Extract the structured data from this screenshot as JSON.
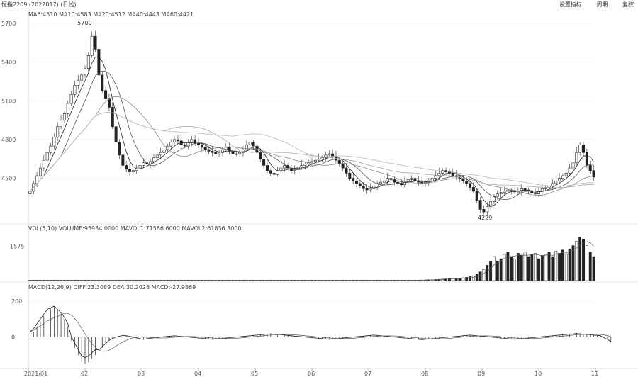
{
  "header": {
    "symbol_title": "恒指2209 (2022017) (日线)",
    "buttons": [
      "设置指标",
      "周期",
      "复权"
    ]
  },
  "panels": {
    "ma_legend": "MA5:4510  MA10:4583  MA20:4512  MA40:4443  MA60:4421",
    "vol_legend": "VOL(5,10)  VOLUME:95934.0000  MAVOL1:71586.6000  MAVOL2:61836.3000",
    "macd_legend": "MACD(12,26,9)  DIFF:23.3089  DEA:30.2028  MACD:-27.9869"
  },
  "chart_data": [
    {
      "type": "candlestick",
      "y_ticks": [
        4500,
        4800,
        5100,
        5400,
        5700
      ],
      "ylim": [
        4180,
        5760
      ],
      "annotations": [
        {
          "label": "5700",
          "kind": "high"
        },
        {
          "label": "4229",
          "kind": "low"
        }
      ],
      "x_ticks": [
        "2021/01",
        "02",
        "03",
        "04",
        "05",
        "06",
        "07",
        "08",
        "09",
        "10",
        "11"
      ],
      "close_series": [
        4400,
        4460,
        4520,
        4580,
        4640,
        4700,
        4750,
        4820,
        4900,
        4950,
        5000,
        5080,
        5150,
        5220,
        5260,
        5300,
        5350,
        5450,
        5600,
        5500,
        5300,
        5180,
        5120,
        5050,
        4900,
        4780,
        4680,
        4600,
        4570,
        4550,
        4560,
        4580,
        4600,
        4620,
        4610,
        4630,
        4660,
        4680,
        4700,
        4720,
        4750,
        4780,
        4800,
        4790,
        4760,
        4750,
        4780,
        4800,
        4770,
        4760,
        4740,
        4720,
        4710,
        4700,
        4690,
        4700,
        4720,
        4740,
        4710,
        4690,
        4690,
        4700,
        4720,
        4760,
        4780,
        4750,
        4700,
        4650,
        4600,
        4560,
        4540,
        4530,
        4560,
        4580,
        4600,
        4580,
        4560,
        4570,
        4590,
        4600,
        4610,
        4620,
        4630,
        4640,
        4650,
        4660,
        4680,
        4690,
        4670,
        4640,
        4610,
        4580,
        4540,
        4500,
        4480,
        4460,
        4440,
        4420,
        4410,
        4420,
        4440,
        4460,
        4470,
        4480,
        4500,
        4490,
        4470,
        4460,
        4450,
        4470,
        4490,
        4500,
        4480,
        4470,
        4460,
        4470,
        4480,
        4500,
        4520,
        4540,
        4560,
        4550,
        4540,
        4520,
        4510,
        4500,
        4480,
        4460,
        4430,
        4400,
        4330,
        4260,
        4240,
        4280,
        4320,
        4360,
        4380,
        4390,
        4400,
        4410,
        4405,
        4395,
        4400,
        4420,
        4410,
        4400,
        4390,
        4380,
        4400,
        4420,
        4430,
        4440,
        4460,
        4480,
        4500,
        4520,
        4540,
        4580,
        4620,
        4700,
        4760,
        4700,
        4600,
        4560,
        4510
      ]
    },
    {
      "type": "bar",
      "title": "VOL",
      "y_ticks": [
        1575
      ],
      "ylim": [
        0,
        2200
      ],
      "values": [
        20,
        20,
        20,
        20,
        20,
        20,
        20,
        20,
        20,
        20,
        20,
        20,
        20,
        20,
        20,
        20,
        20,
        20,
        20,
        20,
        20,
        20,
        20,
        20,
        20,
        20,
        20,
        20,
        20,
        20,
        20,
        20,
        20,
        20,
        20,
        20,
        20,
        20,
        20,
        20,
        20,
        20,
        20,
        20,
        20,
        20,
        20,
        20,
        20,
        20,
        20,
        20,
        20,
        20,
        20,
        20,
        20,
        20,
        20,
        20,
        20,
        20,
        20,
        20,
        20,
        20,
        20,
        20,
        20,
        20,
        20,
        20,
        20,
        20,
        20,
        20,
        20,
        20,
        20,
        20,
        20,
        20,
        20,
        20,
        20,
        20,
        20,
        20,
        20,
        20,
        20,
        20,
        20,
        20,
        20,
        20,
        20,
        20,
        20,
        20,
        20,
        20,
        20,
        20,
        20,
        20,
        20,
        20,
        20,
        20,
        20,
        20,
        20,
        20,
        30,
        30,
        40,
        40,
        50,
        60,
        70,
        80,
        90,
        100,
        110,
        120,
        130,
        150,
        180,
        220,
        300,
        400,
        500,
        700,
        900,
        1100,
        900,
        1000,
        1200,
        1300,
        1100,
        1000,
        1250,
        1150,
        1300,
        1100,
        1200,
        1250,
        1000,
        1150,
        1200,
        1300,
        1100,
        1350,
        1250,
        1400,
        1200,
        1450,
        1600,
        1800,
        2000,
        1900,
        1600,
        1300,
        1100
      ]
    },
    {
      "type": "bar",
      "title": "MACD",
      "y_ticks": [
        0,
        200
      ],
      "ylim": [
        -160,
        260
      ],
      "values": [
        10,
        30,
        60,
        90,
        120,
        150,
        160,
        170,
        150,
        130,
        100,
        60,
        -20,
        -60,
        -100,
        -140,
        -150,
        -140,
        -120,
        -100,
        -80,
        -60,
        -40,
        -20,
        -10,
        0,
        5,
        10,
        8,
        5,
        0,
        -5,
        -10,
        -15,
        -10,
        -8,
        -5,
        -3,
        0,
        2,
        4,
        6,
        8,
        6,
        4,
        2,
        0,
        -2,
        -4,
        -6,
        -8,
        -10,
        -12,
        -14,
        -12,
        -10,
        -8,
        -6,
        -4,
        -2,
        0,
        2,
        4,
        6,
        8,
        10,
        12,
        14,
        16,
        18,
        20,
        18,
        16,
        14,
        12,
        10,
        8,
        6,
        4,
        2,
        0,
        -2,
        -4,
        -6,
        -8,
        -10,
        -12,
        -14,
        -12,
        -10,
        -8,
        -6,
        -4,
        -2,
        0,
        2,
        4,
        6,
        8,
        10,
        12,
        10,
        8,
        6,
        4,
        2,
        0,
        -2,
        -4,
        -6,
        -8,
        -10,
        -12,
        -14,
        -16,
        -14,
        -12,
        -10,
        -8,
        -6,
        -4,
        -2,
        0,
        2,
        4,
        6,
        8,
        10,
        12,
        10,
        8,
        6,
        4,
        2,
        0,
        -2,
        -4,
        -6,
        -8,
        -10,
        -12,
        -14,
        -12,
        -10,
        -8,
        -6,
        -4,
        -2,
        0,
        2,
        4,
        6,
        8,
        10,
        12,
        14,
        16,
        18,
        20,
        22,
        20,
        18,
        16,
        14,
        12,
        10,
        8,
        -5,
        -15,
        -28
      ]
    }
  ]
}
